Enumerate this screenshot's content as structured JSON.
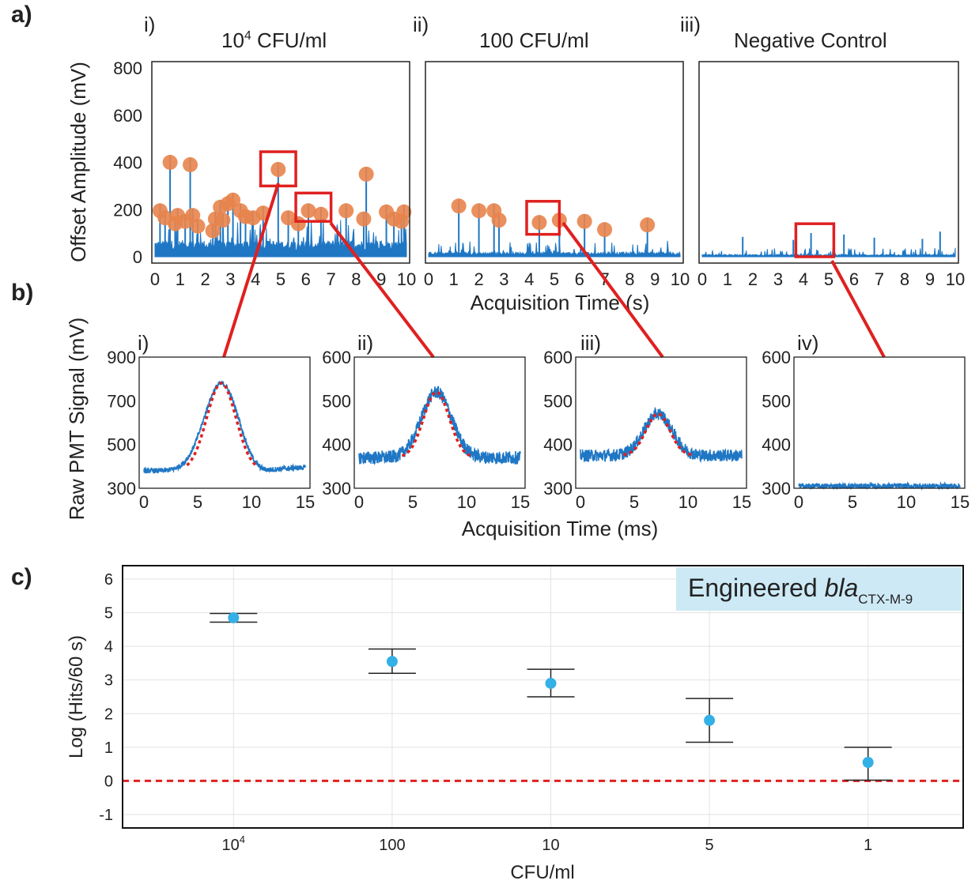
{
  "colors": {
    "trace": "#1f77c4",
    "hit_marker": "#e8844c",
    "fit": "#e02020",
    "highlight": "#e02020",
    "mean_marker": "#33b0e6",
    "legend_bg": "#cde9f6"
  },
  "panel_labels": {
    "a": "a)",
    "b": "b)",
    "c": "c)"
  },
  "panel_a": {
    "xlabel": "Acquisition Time (s)",
    "ylabel": "Offset Amplitude (mV)",
    "xticks": [
      "0",
      "1",
      "2",
      "3",
      "4",
      "5",
      "6",
      "7",
      "8",
      "9",
      "10"
    ],
    "yticks": [
      "0",
      "200",
      "400",
      "600",
      "800"
    ],
    "plots": [
      {
        "roman": "i)",
        "title_main": "10",
        "title_sup": "4",
        "title_rest": " CFU/ml"
      },
      {
        "roman": "ii)",
        "title_main": "100 CFU/ml",
        "title_sup": "",
        "title_rest": ""
      },
      {
        "roman": "iii)",
        "title_main": "Negative Control",
        "title_sup": "",
        "title_rest": ""
      }
    ]
  },
  "panel_b": {
    "xlabel": "Acquisition Time (ms)",
    "ylabel": "Raw PMT Signal (mV)",
    "xticks": [
      "0",
      "5",
      "10",
      "15"
    ],
    "plots": [
      {
        "roman": "i)",
        "yticks": [
          "300",
          "500",
          "700",
          "900"
        ]
      },
      {
        "roman": "ii)",
        "yticks": [
          "300",
          "400",
          "500",
          "600"
        ]
      },
      {
        "roman": "iii)",
        "yticks": [
          "300",
          "400",
          "500",
          "600"
        ]
      },
      {
        "roman": "iv)",
        "yticks": [
          "300",
          "400",
          "500",
          "600"
        ]
      }
    ]
  },
  "chart_data": [
    {
      "type": "scatter",
      "panel": "a-i",
      "title": "10^4 CFU/ml",
      "xlabel": "Acquisition Time (s)",
      "ylabel": "Offset Amplitude (mV)",
      "xlim": [
        0,
        10
      ],
      "ylim": [
        0,
        800
      ],
      "baseline_mV": 70,
      "noise_mV": 50,
      "hits": [
        {
          "x": 0.2,
          "y": 195
        },
        {
          "x": 0.4,
          "y": 165
        },
        {
          "x": 0.6,
          "y": 400
        },
        {
          "x": 0.8,
          "y": 140
        },
        {
          "x": 0.9,
          "y": 175
        },
        {
          "x": 1.2,
          "y": 150
        },
        {
          "x": 1.4,
          "y": 390
        },
        {
          "x": 1.5,
          "y": 175
        },
        {
          "x": 1.7,
          "y": 130
        },
        {
          "x": 2.3,
          "y": 110
        },
        {
          "x": 2.4,
          "y": 160
        },
        {
          "x": 2.6,
          "y": 210
        },
        {
          "x": 2.7,
          "y": 155
        },
        {
          "x": 2.9,
          "y": 225
        },
        {
          "x": 3.1,
          "y": 240
        },
        {
          "x": 3.4,
          "y": 195
        },
        {
          "x": 3.6,
          "y": 170
        },
        {
          "x": 3.9,
          "y": 165
        },
        {
          "x": 4.3,
          "y": 185
        },
        {
          "x": 4.9,
          "y": 370
        },
        {
          "x": 5.3,
          "y": 165
        },
        {
          "x": 5.7,
          "y": 140
        },
        {
          "x": 6.1,
          "y": 195
        },
        {
          "x": 6.6,
          "y": 180
        },
        {
          "x": 7.6,
          "y": 195
        },
        {
          "x": 8.3,
          "y": 160
        },
        {
          "x": 8.4,
          "y": 350
        },
        {
          "x": 9.2,
          "y": 190
        },
        {
          "x": 9.5,
          "y": 160
        },
        {
          "x": 9.8,
          "y": 150
        },
        {
          "x": 9.9,
          "y": 190
        }
      ],
      "highlights": [
        {
          "x0": 4.2,
          "x1": 5.6,
          "y0": 300,
          "y1": 445
        },
        {
          "x0": 5.6,
          "y0": 150,
          "x1": 7.0,
          "y1": 270
        }
      ]
    },
    {
      "type": "scatter",
      "panel": "a-ii",
      "title": "100 CFU/ml",
      "xlabel": "Acquisition Time (s)",
      "xlim": [
        0,
        10
      ],
      "ylim": [
        0,
        800
      ],
      "baseline_mV": 20,
      "noise_mV": 25,
      "hits": [
        {
          "x": 1.2,
          "y": 215
        },
        {
          "x": 2.0,
          "y": 195
        },
        {
          "x": 2.6,
          "y": 195
        },
        {
          "x": 2.8,
          "y": 155
        },
        {
          "x": 4.4,
          "y": 145
        },
        {
          "x": 5.2,
          "y": 155
        },
        {
          "x": 6.2,
          "y": 150
        },
        {
          "x": 7.0,
          "y": 115
        },
        {
          "x": 8.7,
          "y": 135
        }
      ],
      "highlights": [
        {
          "x0": 3.9,
          "x1": 5.2,
          "y0": 95,
          "y1": 235
        }
      ]
    },
    {
      "type": "line",
      "panel": "a-iii",
      "title": "Negative Control",
      "xlabel": "Acquisition Time (s)",
      "xlim": [
        0,
        10
      ],
      "ylim": [
        0,
        800
      ],
      "baseline_mV": 10,
      "noise_mV": 15,
      "hits": [],
      "highlights": [
        {
          "x0": 3.7,
          "x1": 5.2,
          "y0": 0,
          "y1": 140
        }
      ]
    },
    {
      "type": "line",
      "panel": "b-i",
      "xlabel": "Acquisition Time (ms)",
      "ylabel": "Raw PMT Signal (mV)",
      "xlim": [
        0,
        15
      ],
      "ylim": [
        300,
        900
      ],
      "baseline_mV": 380,
      "peak_mV": 780,
      "peak_ms": 7.2,
      "width_ms": 1.6,
      "noise_mV": 12,
      "fit": "Gaussian (red dashed)"
    },
    {
      "type": "line",
      "panel": "b-ii",
      "xlabel": "Acquisition Time (ms)",
      "xlim": [
        0,
        15
      ],
      "ylim": [
        300,
        600
      ],
      "baseline_mV": 370,
      "peak_mV": 520,
      "peak_ms": 7.2,
      "width_ms": 1.4,
      "noise_mV": 15,
      "fit": "Gaussian (red dashed)"
    },
    {
      "type": "line",
      "panel": "b-iii",
      "xlabel": "Acquisition Time (ms)",
      "xlim": [
        0,
        15
      ],
      "ylim": [
        300,
        600
      ],
      "baseline_mV": 375,
      "peak_mV": 470,
      "peak_ms": 7.2,
      "width_ms": 1.3,
      "noise_mV": 14,
      "fit": "Gaussian (red dashed)"
    },
    {
      "type": "line",
      "panel": "b-iv",
      "xlabel": "Acquisition Time (ms)",
      "xlim": [
        0,
        15
      ],
      "ylim": [
        300,
        600
      ],
      "baseline_mV": 305,
      "noise_mV": 6,
      "fit": ""
    },
    {
      "type": "scatter",
      "panel": "c",
      "xlabel": "CFU/ml",
      "ylabel": "Log (Hits/60 s)",
      "categories": [
        {
          "label": "10",
          "sup": "4"
        },
        {
          "label": "100",
          "sup": ""
        },
        {
          "label": "10",
          "sup": ""
        },
        {
          "label": "5",
          "sup": ""
        },
        {
          "label": "1",
          "sup": ""
        }
      ],
      "series": [
        {
          "values": [
            4.85,
            3.55,
            2.9,
            1.8,
            0.55
          ],
          "error_low": [
            4.72,
            3.2,
            2.5,
            1.15,
            0.02
          ],
          "error_high": [
            4.98,
            3.92,
            3.32,
            2.45,
            1.0
          ]
        }
      ],
      "threshold": 0,
      "ylim": [
        -1.4,
        6.4
      ],
      "yticks": [
        "-1",
        "0",
        "1",
        "2",
        "3",
        "4",
        "5",
        "6"
      ],
      "grid": true,
      "legend": {
        "text_main": "Engineered ",
        "text_italic": "bla",
        "text_sub": "CTX-M-9",
        "placement": "top-right"
      }
    }
  ]
}
